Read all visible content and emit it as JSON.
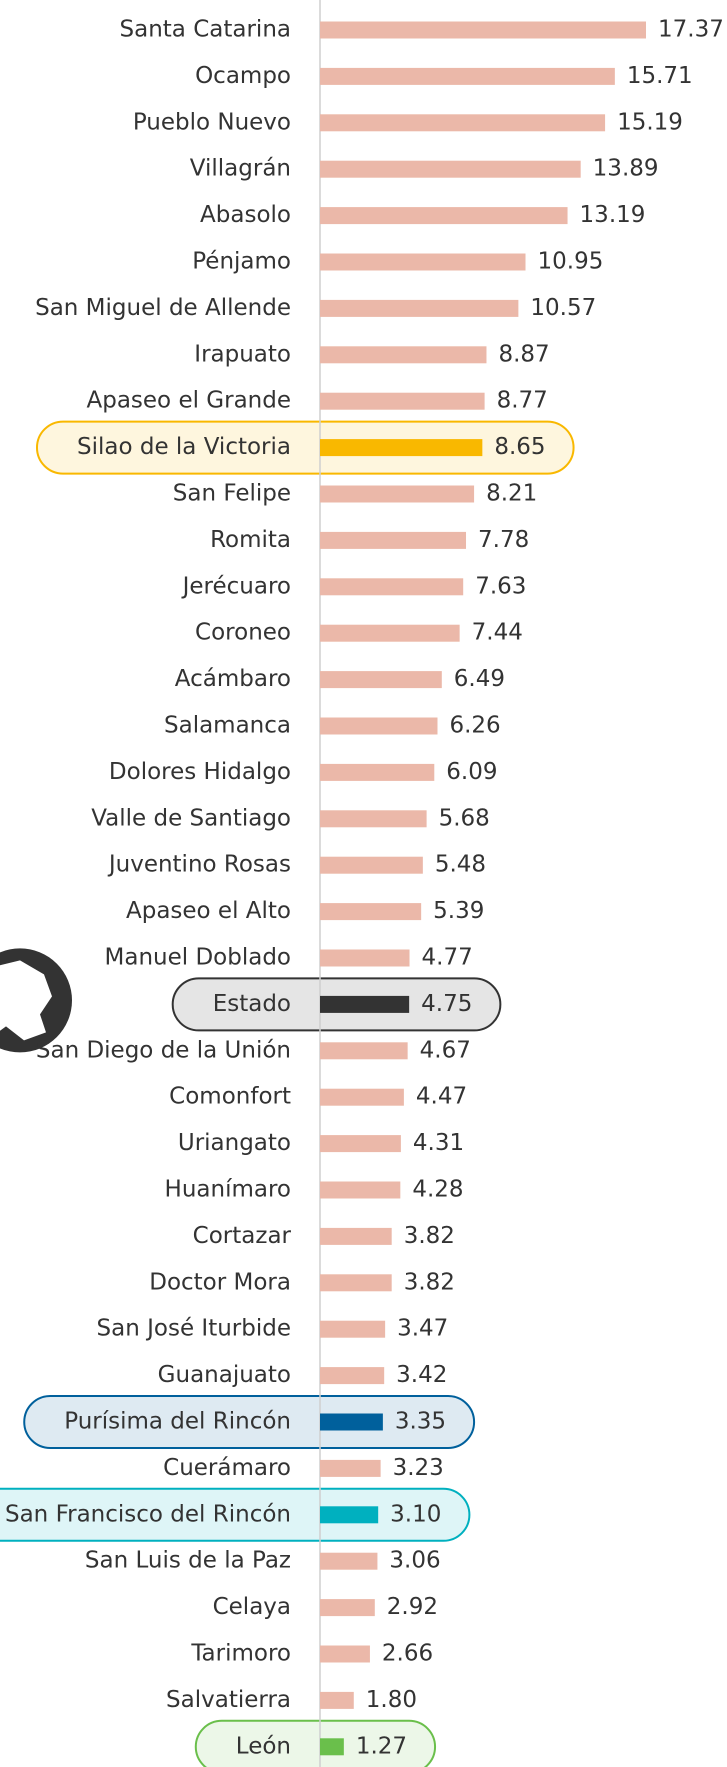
{
  "chart_data": {
    "type": "barh",
    "categories": [
      "Santa Catarina",
      "Ocampo",
      "Pueblo Nuevo",
      "Villagrán",
      "Abasolo",
      "Pénjamo",
      "San Miguel de Allende",
      "Irapuato",
      "Apaseo el Grande",
      "Silao de la Victoria",
      "San Felipe",
      "Romita",
      "Jerécuaro",
      "Coroneo",
      "Acámbaro",
      "Salamanca",
      "Dolores Hidalgo ",
      "Valle de Santiago",
      "Juventino Rosas",
      "Apaseo el Alto",
      "Manuel Doblado",
      "Estado",
      "San Diego de la Unión",
      "Comonfort",
      "Uriangato",
      "Huanímaro",
      "Cortazar",
      "Doctor Mora",
      "San José Iturbide",
      "Guanajuato",
      "Purísima del Rincón",
      "Cuerámaro",
      "San Francisco del Rincón",
      "San Luis de la Paz",
      "Celaya",
      "Tarimoro",
      "Salvatierra",
      "León"
    ],
    "values": [
      17.37,
      15.71,
      15.19,
      13.89,
      13.19,
      10.95,
      10.57,
      8.87,
      8.77,
      8.65,
      8.21,
      7.78,
      7.63,
      7.44,
      6.49,
      6.26,
      6.09,
      5.68,
      5.48,
      5.39,
      4.77,
      4.75,
      4.67,
      4.47,
      4.31,
      4.28,
      3.82,
      3.82,
      3.47,
      3.42,
      3.35,
      3.23,
      3.1,
      3.06,
      2.92,
      2.66,
      1.8,
      1.27
    ],
    "value_labels": [
      "17.37",
      "15.71",
      "15.19",
      "13.89",
      "13.19",
      "10.95",
      "10.57",
      "8.87",
      "8.77",
      "8.65",
      "8.21",
      "7.78",
      "7.63",
      "7.44",
      "6.49",
      "6.26",
      "6.09",
      "5.68",
      "5.48",
      "5.39",
      "4.77",
      "4.75",
      "4.67",
      "4.47",
      "4.31",
      "4.28",
      "3.82",
      "3.82",
      "3.47",
      "3.42",
      "3.35",
      "3.23",
      "3.10",
      "3.06",
      "2.92",
      "2.66",
      "1.80",
      "1.27"
    ],
    "color": "#ebb8a9",
    "colors": [
      null,
      null,
      null,
      null,
      null,
      null,
      null,
      null,
      null,
      "#f9b800",
      null,
      null,
      null,
      null,
      null,
      null,
      null,
      null,
      null,
      null,
      null,
      "#333333",
      null,
      null,
      null,
      null,
      null,
      null,
      null,
      null,
      "#00609c",
      null,
      "#00b0bf",
      null,
      null,
      null,
      null,
      "#6abf4b"
    ]
  }
}
